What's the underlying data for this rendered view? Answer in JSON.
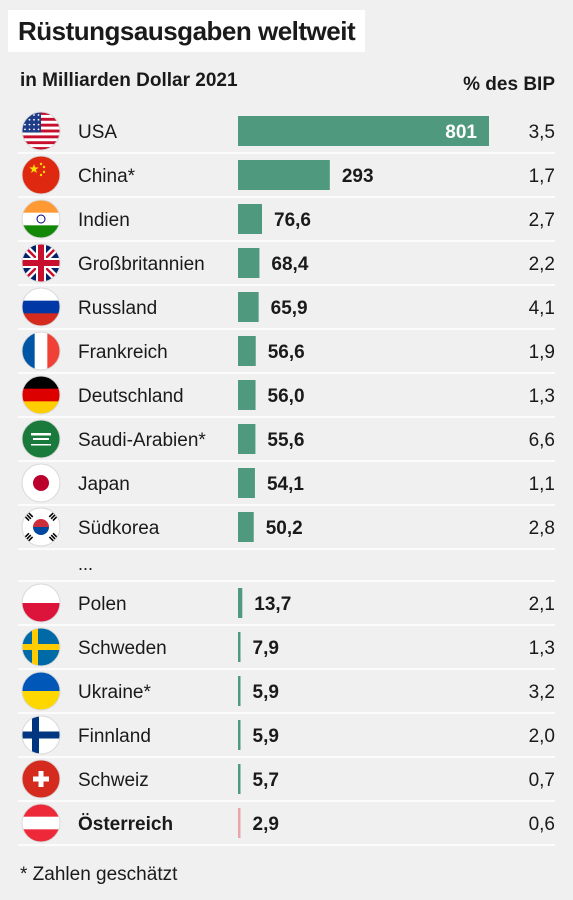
{
  "title": "Rüstungsausgaben weltweit",
  "subtitle": "in Milliarden Dollar 2021",
  "gdp_header": "% des BIP",
  "ellipsis": "...",
  "footnote": "* Zahlen geschätzt",
  "colors": {
    "bar": "#4f9a7f",
    "bar_highlight": "#e8a6a8",
    "separator": "#ffffff",
    "background": "#f0f0f0"
  },
  "chart_data": {
    "type": "bar",
    "orientation": "horizontal",
    "title": "Rüstungsausgaben weltweit",
    "subtitle": "in Milliarden Dollar 2021",
    "categories": [
      "USA",
      "China*",
      "Indien",
      "Großbritannien",
      "Russland",
      "Frankreich",
      "Deutschland",
      "Saudi-Arabien*",
      "Japan",
      "Südkorea",
      "Polen",
      "Schweden",
      "Ukraine*",
      "Finnland",
      "Schweiz",
      "Österreich"
    ],
    "values": [
      801,
      293,
      76.6,
      68.4,
      65.9,
      56.6,
      56.0,
      55.6,
      54.1,
      50.2,
      13.7,
      7.9,
      5.9,
      5.9,
      5.7,
      2.9
    ],
    "value_labels": [
      "801",
      "293",
      "76,6",
      "68,4",
      "65,9",
      "56,6",
      "56,0",
      "55,6",
      "54,1",
      "50,2",
      "13,7",
      "7,9",
      "5,9",
      "5,9",
      "5,7",
      "2,9"
    ],
    "gdp_share_labels": [
      "3,5",
      "1,7",
      "2,7",
      "2,2",
      "4,1",
      "1,9",
      "1,3",
      "6,6",
      "1,1",
      "2,8",
      "2,1",
      "1,3",
      "3,2",
      "2,0",
      "0,7",
      "0,6"
    ],
    "flag_icons": [
      "usa-flag-icon",
      "china-flag-icon",
      "india-flag-icon",
      "uk-flag-icon",
      "russia-flag-icon",
      "france-flag-icon",
      "germany-flag-icon",
      "saudi-arabia-flag-icon",
      "japan-flag-icon",
      "south-korea-flag-icon",
      "poland-flag-icon",
      "sweden-flag-icon",
      "ukraine-flag-icon",
      "finland-flag-icon",
      "switzerland-flag-icon",
      "austria-flag-icon"
    ],
    "highlight": "Österreich",
    "gap_after_index": 9,
    "xlim": [
      0,
      801
    ],
    "grid": false,
    "legend": "none"
  }
}
